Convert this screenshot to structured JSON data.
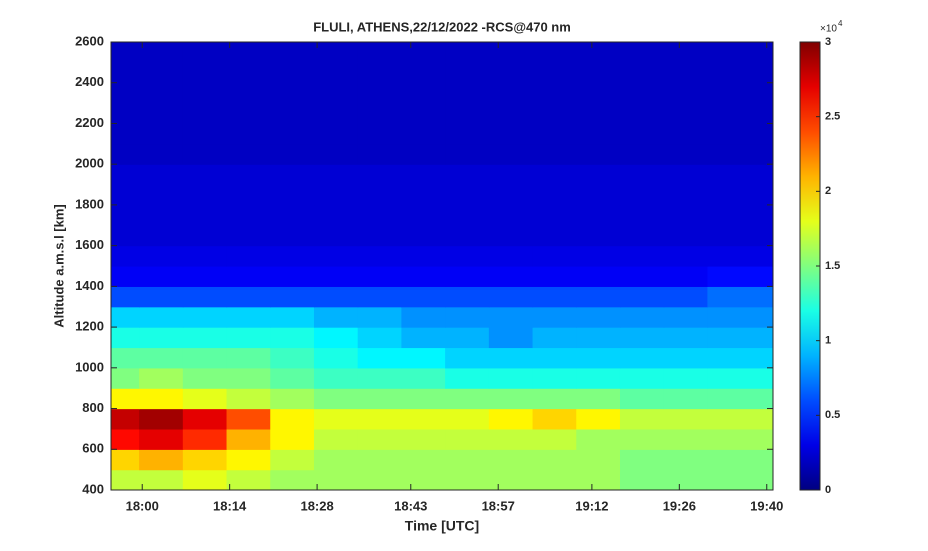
{
  "chart_data": {
    "type": "heatmap",
    "title": "FLULI, ATHENS,22/12/2022 -RCS@470 nm",
    "x_label": "Time [UTC]",
    "y_label": "Altitude a.m.s.l [km]",
    "colormap": "jet",
    "xlim": [
      1075,
      1181
    ],
    "xticks": [
      {
        "value": 1080,
        "label": "18:00"
      },
      {
        "value": 1094,
        "label": "18:14"
      },
      {
        "value": 1108,
        "label": "18:28"
      },
      {
        "value": 1123,
        "label": "18:43"
      },
      {
        "value": 1137,
        "label": "18:57"
      },
      {
        "value": 1152,
        "label": "19:12"
      },
      {
        "value": 1166,
        "label": "19:26"
      },
      {
        "value": 1180,
        "label": "19:40"
      }
    ],
    "ylim": [
      400,
      2600
    ],
    "yticks": [
      400,
      600,
      800,
      1000,
      1200,
      1400,
      1600,
      1800,
      2000,
      2200,
      2400,
      2600
    ],
    "clim": [
      0,
      3
    ],
    "cticks": [
      0,
      0.5,
      1,
      1.5,
      2,
      2.5,
      3
    ],
    "colorbar_multiplier": {
      "base": "×10",
      "exponent": "4"
    },
    "x": [
      1076,
      1083,
      1090,
      1097,
      1104,
      1111,
      1118,
      1125,
      1132,
      1139,
      1146,
      1153,
      1160,
      1167,
      1174
    ],
    "y": [
      450,
      550,
      650,
      750,
      850,
      950,
      1050,
      1150,
      1250,
      1350,
      1450,
      1550,
      1650,
      1750,
      1850,
      1950,
      2050,
      2150,
      2250,
      2350,
      2450,
      2550
    ],
    "z": [
      [
        1.7,
        1.7,
        1.8,
        1.7,
        1.6,
        1.6,
        1.6,
        1.6,
        1.6,
        1.6,
        1.6,
        1.6,
        1.5,
        1.5,
        1.5
      ],
      [
        2.0,
        2.1,
        2.0,
        1.9,
        1.7,
        1.6,
        1.6,
        1.6,
        1.6,
        1.6,
        1.6,
        1.6,
        1.5,
        1.5,
        1.5
      ],
      [
        2.6,
        2.7,
        2.5,
        2.1,
        1.9,
        1.7,
        1.7,
        1.7,
        1.7,
        1.7,
        1.7,
        1.6,
        1.6,
        1.6,
        1.6
      ],
      [
        2.8,
        2.9,
        2.7,
        2.4,
        1.9,
        1.8,
        1.8,
        1.8,
        1.8,
        1.9,
        2.0,
        1.9,
        1.7,
        1.7,
        1.7
      ],
      [
        1.9,
        1.9,
        1.8,
        1.7,
        1.6,
        1.5,
        1.5,
        1.5,
        1.5,
        1.5,
        1.5,
        1.5,
        1.4,
        1.4,
        1.4
      ],
      [
        1.5,
        1.6,
        1.5,
        1.5,
        1.4,
        1.3,
        1.3,
        1.3,
        1.2,
        1.2,
        1.2,
        1.2,
        1.2,
        1.2,
        1.2
      ],
      [
        1.4,
        1.4,
        1.4,
        1.4,
        1.3,
        1.2,
        1.1,
        1.1,
        1.0,
        1.0,
        1.0,
        1.0,
        1.0,
        1.0,
        1.0
      ],
      [
        1.2,
        1.2,
        1.2,
        1.2,
        1.2,
        1.1,
        1.0,
        0.9,
        0.9,
        0.8,
        0.9,
        0.9,
        0.9,
        0.9,
        0.9
      ],
      [
        1.0,
        1.0,
        1.0,
        1.0,
        1.0,
        0.9,
        0.9,
        0.8,
        0.8,
        0.8,
        0.8,
        0.8,
        0.8,
        0.8,
        0.8
      ],
      [
        0.6,
        0.6,
        0.6,
        0.6,
        0.6,
        0.6,
        0.6,
        0.6,
        0.6,
        0.6,
        0.6,
        0.6,
        0.6,
        0.6,
        0.7
      ],
      [
        0.35,
        0.35,
        0.35,
        0.35,
        0.35,
        0.35,
        0.35,
        0.35,
        0.35,
        0.35,
        0.35,
        0.35,
        0.35,
        0.35,
        0.4
      ],
      [
        0.3,
        0.3,
        0.3,
        0.3,
        0.3,
        0.3,
        0.3,
        0.3,
        0.3,
        0.3,
        0.3,
        0.3,
        0.3,
        0.3,
        0.3
      ],
      [
        0.25,
        0.25,
        0.25,
        0.25,
        0.25,
        0.25,
        0.25,
        0.25,
        0.25,
        0.25,
        0.25,
        0.25,
        0.25,
        0.25,
        0.25
      ],
      [
        0.25,
        0.25,
        0.25,
        0.25,
        0.25,
        0.25,
        0.25,
        0.25,
        0.25,
        0.25,
        0.25,
        0.25,
        0.25,
        0.25,
        0.25
      ],
      [
        0.25,
        0.25,
        0.25,
        0.25,
        0.25,
        0.25,
        0.25,
        0.25,
        0.25,
        0.25,
        0.25,
        0.25,
        0.25,
        0.25,
        0.25
      ],
      [
        0.25,
        0.25,
        0.25,
        0.25,
        0.25,
        0.25,
        0.25,
        0.25,
        0.25,
        0.25,
        0.25,
        0.25,
        0.25,
        0.25,
        0.25
      ],
      [
        0.2,
        0.2,
        0.2,
        0.2,
        0.2,
        0.2,
        0.2,
        0.2,
        0.2,
        0.2,
        0.2,
        0.2,
        0.2,
        0.2,
        0.2
      ],
      [
        0.2,
        0.2,
        0.2,
        0.2,
        0.2,
        0.2,
        0.2,
        0.2,
        0.2,
        0.2,
        0.2,
        0.2,
        0.2,
        0.2,
        0.2
      ],
      [
        0.2,
        0.2,
        0.2,
        0.2,
        0.2,
        0.2,
        0.2,
        0.2,
        0.2,
        0.2,
        0.2,
        0.2,
        0.2,
        0.2,
        0.2
      ],
      [
        0.2,
        0.2,
        0.2,
        0.2,
        0.2,
        0.2,
        0.2,
        0.2,
        0.2,
        0.2,
        0.2,
        0.2,
        0.2,
        0.2,
        0.2
      ],
      [
        0.2,
        0.2,
        0.2,
        0.2,
        0.2,
        0.2,
        0.2,
        0.2,
        0.2,
        0.2,
        0.2,
        0.2,
        0.2,
        0.2,
        0.2
      ],
      [
        0.2,
        0.2,
        0.2,
        0.2,
        0.2,
        0.2,
        0.2,
        0.2,
        0.2,
        0.2,
        0.2,
        0.2,
        0.2,
        0.2,
        0.2
      ]
    ]
  }
}
